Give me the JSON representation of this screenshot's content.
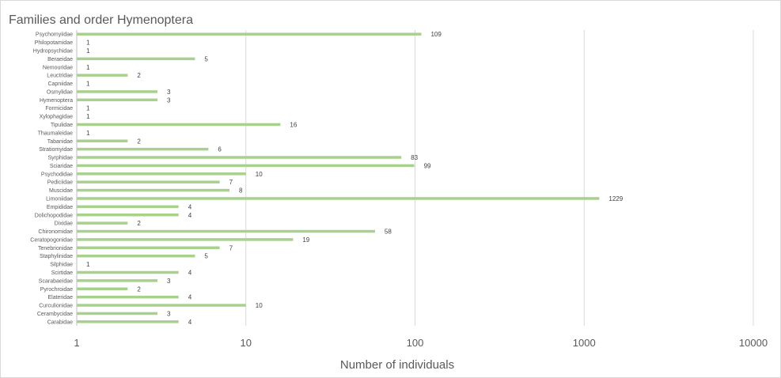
{
  "chart_data": {
    "type": "bar",
    "orientation": "horizontal",
    "title": "Families and order Hymenoptera",
    "xlabel": "Number of individuals",
    "ylabel": "",
    "xscale": "log",
    "xlim": [
      1,
      10000
    ],
    "xticks": [
      "1",
      "10",
      "100",
      "1000",
      "10000"
    ],
    "grid": true,
    "bar_color": "#a9d18e",
    "categories": [
      "Psychomyiidae",
      "Philopotamidae",
      "Hydropsychidae",
      "Beraeidae",
      "Nemouridae",
      "Leuctridae",
      "Capniidae",
      "Osmylidae",
      "Hymenoptera",
      "Formicidae",
      "Xylophagidae",
      "Tipulidae",
      "Thaumaleidae",
      "Tabanidae",
      "Stratiomyidae",
      "Syrphidae",
      "Sciaridae",
      "Psychodidae",
      "Pediciidae",
      "Muscidae",
      "Limoniidae",
      "Empididae",
      "Dolichopodidae",
      "Dixidae",
      "Chironomidae",
      "Ceratopogonidae",
      "Tenebrionidae",
      "Staphylinidae",
      "Silphidae",
      "Scirtidae",
      "Scarabaeidae",
      "Pyrochroidae",
      "Elateridae",
      "Curculionidae",
      "Cerambycidae",
      "Carabidae"
    ],
    "values": [
      109,
      1,
      1,
      5,
      1,
      2,
      1,
      3,
      3,
      1,
      1,
      16,
      1,
      2,
      6,
      83,
      99,
      10,
      7,
      8,
      1229,
      4,
      4,
      2,
      58,
      19,
      7,
      5,
      1,
      4,
      3,
      2,
      4,
      10,
      3,
      4
    ]
  }
}
